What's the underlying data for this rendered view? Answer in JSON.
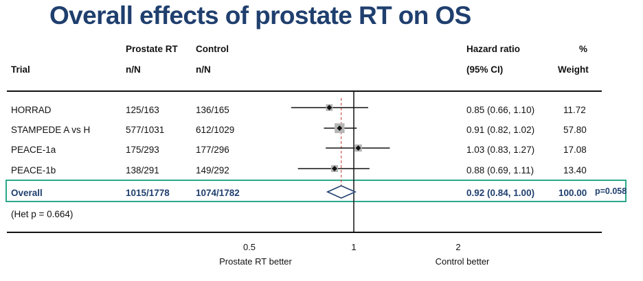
{
  "title": "Overall effects of prostate RT on OS",
  "headers": {
    "trial": "Trial",
    "arm1_line1": "Prostate RT",
    "arm1_line2": "n/N",
    "arm2_line1": "Control",
    "arm2_line2": "n/N",
    "hr_line1": "Hazard ratio",
    "hr_line2": "(95% CI)",
    "weight_line1": "%",
    "weight_line2": "Weight"
  },
  "chart_data": {
    "type": "forest",
    "scale": "log",
    "xlim": [
      0.3,
      3.2
    ],
    "reference_line": 1,
    "pooled_estimate_line": 0.92,
    "x_ticks": [
      "0.5",
      "1",
      "2"
    ],
    "left_label": "Prostate RT better",
    "right_label": "Control better",
    "studies": [
      {
        "trial": "HORRAD",
        "rt": "125/163",
        "control": "136/165",
        "hr": 0.85,
        "lo": 0.66,
        "hi": 1.1,
        "hr_text": "0.85 (0.66, 1.10)",
        "weight": 11.72,
        "weight_text": "11.72"
      },
      {
        "trial": "STAMPEDE A vs H",
        "rt": "577/1031",
        "control": "612/1029",
        "hr": 0.91,
        "lo": 0.82,
        "hi": 1.02,
        "hr_text": "0.91 (0.82, 1.02)",
        "weight": 57.8,
        "weight_text": "57.80"
      },
      {
        "trial": "PEACE-1a",
        "rt": "175/293",
        "control": "177/296",
        "hr": 1.03,
        "lo": 0.83,
        "hi": 1.27,
        "hr_text": "1.03 (0.83, 1.27)",
        "weight": 17.08,
        "weight_text": "17.08"
      },
      {
        "trial": "PEACE-1b",
        "rt": "138/291",
        "control": "149/292",
        "hr": 0.88,
        "lo": 0.69,
        "hi": 1.11,
        "hr_text": "0.88 (0.69, 1.11)",
        "weight": 13.4,
        "weight_text": "13.40"
      }
    ],
    "overall": {
      "trial": "Overall",
      "rt": "1015/1778",
      "control": "1074/1782",
      "hr": 0.92,
      "lo": 0.84,
      "hi": 1.0,
      "hr_text": "0.92 (0.84, 1.00)",
      "weight": 100.0,
      "weight_text": "100.00",
      "p_text": "p=0.058"
    },
    "heterogeneity": "(Het p = 0.664)",
    "colors": {
      "pooled": "#1f3f6e",
      "highlight_box": "#2aa88a",
      "study_box": "#b5b5b5",
      "dashed_line": "#c0392b"
    }
  }
}
